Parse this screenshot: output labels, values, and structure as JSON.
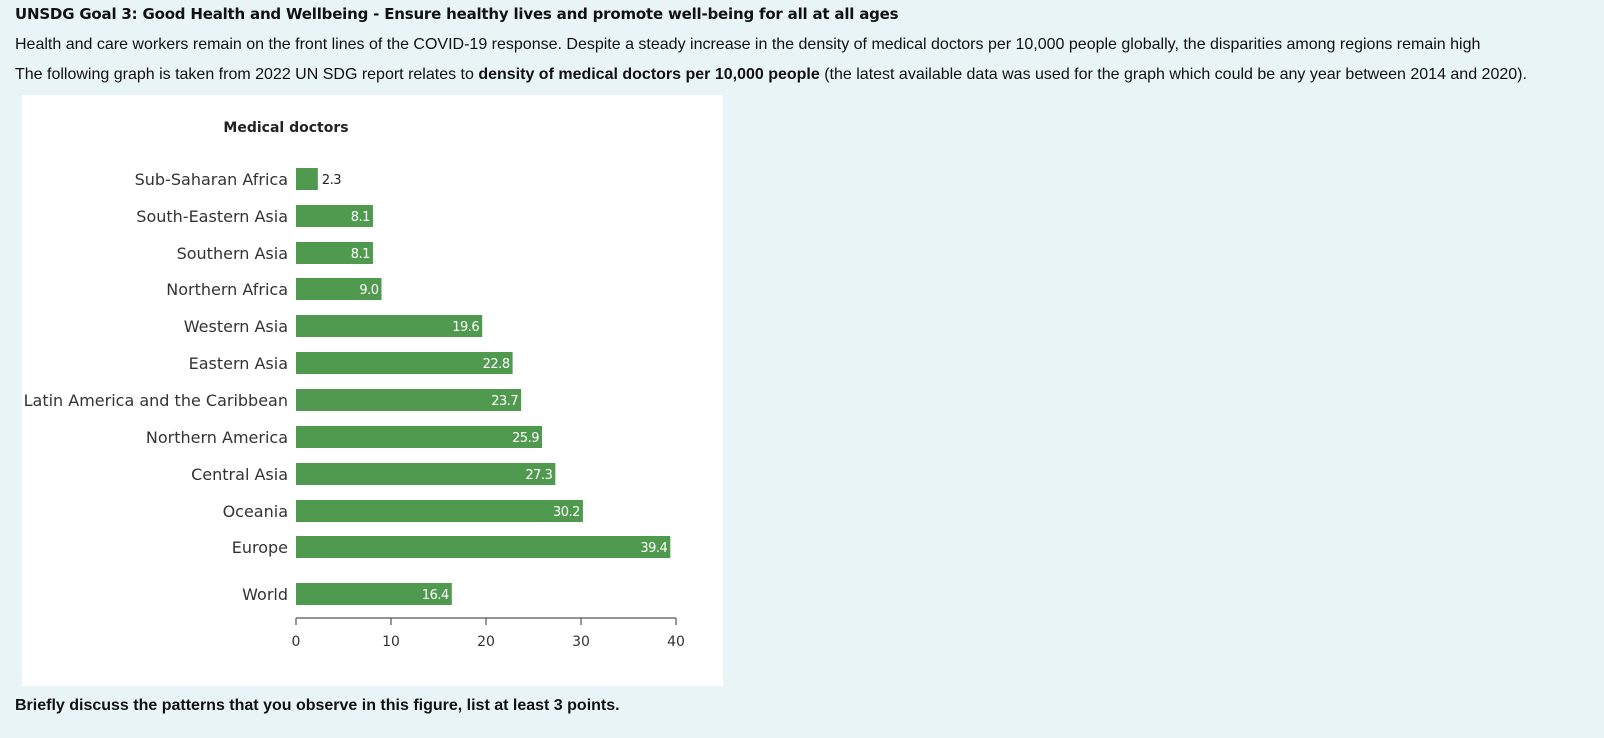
{
  "page": {
    "heading": "UNSDG Goal 3: Good Health and Wellbeing - Ensure healthy lives and promote well-being for all at all ages",
    "intro": "Health and care workers remain on the front lines of the COVID-19 response. Despite a steady increase in the density of medical doctors per 10,000 people globally, the disparities among regions remain high",
    "source_prefix": "The following graph is taken from 2022 UN SDG report relates to ",
    "source_bold": "density of medical doctors per 10,000 people",
    "source_suffix": " (the latest available data was used for the graph which could be any year between 2014 and 2020).",
    "question": "Briefly discuss the patterns that you observe in this figure, list at least 3 points."
  },
  "chart_data": {
    "type": "bar",
    "orientation": "horizontal",
    "title": "Medical doctors",
    "categories": [
      "Sub-Saharan Africa",
      "South-Eastern Asia",
      "Southern Asia",
      "Northern Africa",
      "Western Asia",
      "Eastern Asia",
      "Latin America and the Caribbean",
      "Northern America",
      "Central Asia",
      "Oceania",
      "Europe",
      "World"
    ],
    "values": [
      2.3,
      8.1,
      8.1,
      9.0,
      19.6,
      22.8,
      23.7,
      25.9,
      27.3,
      30.2,
      39.4,
      16.4
    ],
    "value_labels": [
      "2.3",
      "8.1",
      "8.1",
      "9.0",
      "19.6",
      "22.8",
      "23.7",
      "25.9",
      "27.3",
      "30.2",
      "39.4",
      "16.4"
    ],
    "xlim": [
      0,
      40
    ],
    "xticks": [
      0,
      10,
      20,
      30,
      40
    ],
    "xlabel": "",
    "ylabel": "",
    "grid": false,
    "colors": {
      "bar": "#4f9a4f",
      "label_inside": "#ffffff",
      "label_outside": "#222222",
      "axis": "#555555"
    }
  }
}
